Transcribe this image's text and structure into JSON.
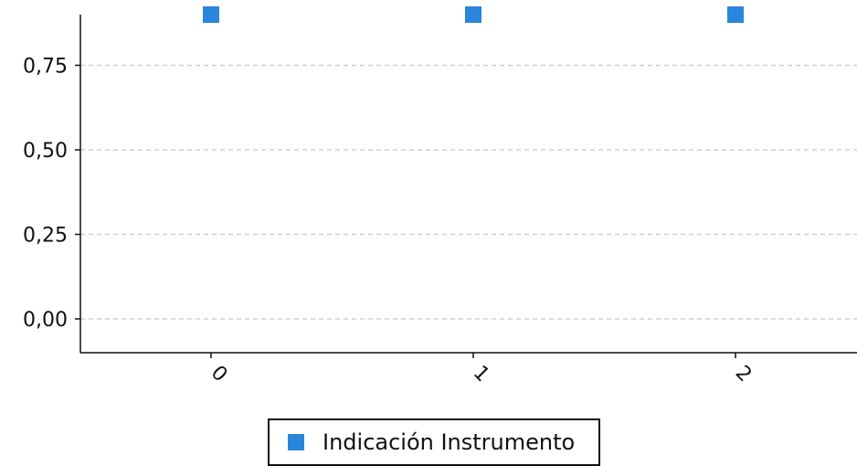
{
  "chart_data": {
    "type": "scatter",
    "title": "",
    "xlabel": "",
    "ylabel": "",
    "categories": [
      "0",
      "1",
      "2"
    ],
    "series": [
      {
        "name": "Indicación Instrumento",
        "color": "#2a85dc",
        "values": [
          0.9,
          0.9,
          0.9
        ]
      }
    ],
    "ylim": [
      -0.1,
      0.9
    ],
    "yticks": [
      0.0,
      0.25,
      0.5,
      0.75
    ],
    "ytick_labels": [
      "0,00",
      "0,25",
      "0,50",
      "0,75"
    ],
    "grid": "horizontal dashed",
    "legend": "bottom-center"
  },
  "legend": {
    "label": "Indicación Instrumento"
  }
}
